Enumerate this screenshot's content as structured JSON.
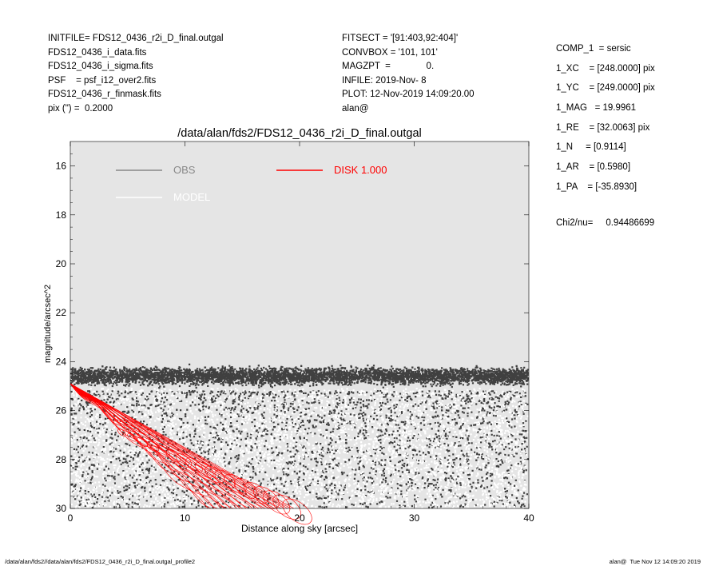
{
  "header_left": [
    "INITFILE= FDS12_0436_r2i_D_final.outgal",
    "FDS12_0436_i_data.fits",
    "FDS12_0436_i_sigma.fits",
    "PSF    = psf_i12_over2.fits",
    "FDS12_0436_r_finmask.fits",
    "pix (\") =  0.2000"
  ],
  "header_mid": [
    "FITSECT = '[91:403,92:404]'",
    "CONVBOX = '101, 101'",
    "MAGZPT  =              0.",
    "INFILE: 2019-Nov- 8",
    "PLOT: 12-Nov-2019 14:09:20.00",
    "alan@"
  ],
  "header_right": [
    "COMP_1  = sersic",
    "1_XC    = [248.0000] pix",
    "1_YC    = [249.0000] pix",
    "1_MAG   = 19.9961",
    "1_RE    = [32.0063] pix",
    "1_N     = [0.9114]",
    "1_AR    = [0.5980]",
    "1_PA    = [-35.8930]"
  ],
  "chi2": "Chi2/nu=     0.94486699",
  "footer_left": "/data/alan/fds2//data/alan/fds2/FDS12_0436_r2i_D_final.outgal_profile2",
  "footer_right": "alan@  Tue Nov 12 14:09:20 2019",
  "chart_data": {
    "type": "scatter",
    "title": "/data/alan/fds2/FDS12_0436_r2i_D_final.outgal",
    "xlabel": "Distance along sky [arcsec]",
    "ylabel": "magnitude/arcsec^2",
    "xlim": [
      0,
      40
    ],
    "ylim": [
      30,
      15
    ],
    "y_inverted": true,
    "xticks": [
      0,
      10,
      20,
      30,
      40
    ],
    "yticks": [
      16,
      18,
      20,
      22,
      24,
      26,
      28,
      30
    ],
    "grid": false,
    "legend_position": "top-left",
    "plot_background": "#e5e5e5",
    "series": [
      {
        "name": "OBS",
        "color": "#404040",
        "legend_color": "#888888",
        "kind": "points",
        "x_range": [
          0,
          40
        ],
        "y_dense_band": [
          24.0,
          25.2
        ],
        "y_sparse_range": [
          25.2,
          30.0
        ],
        "y_min_outliers": 23.5,
        "n_points": 9000
      },
      {
        "name": "MODEL",
        "color": "#ffffff",
        "kind": "points",
        "x_range": [
          0,
          40
        ],
        "y_range": [
          25.0,
          30.0
        ],
        "n_points": 5000
      },
      {
        "name": "DISK  1.000",
        "color": "#ff0000",
        "kind": "lines",
        "start": [
          0,
          24.9
        ],
        "outer_edge_end": [
          19.5,
          30.0
        ],
        "inner_edge_end": [
          12.0,
          30.0
        ],
        "n_lines": 28
      }
    ]
  }
}
